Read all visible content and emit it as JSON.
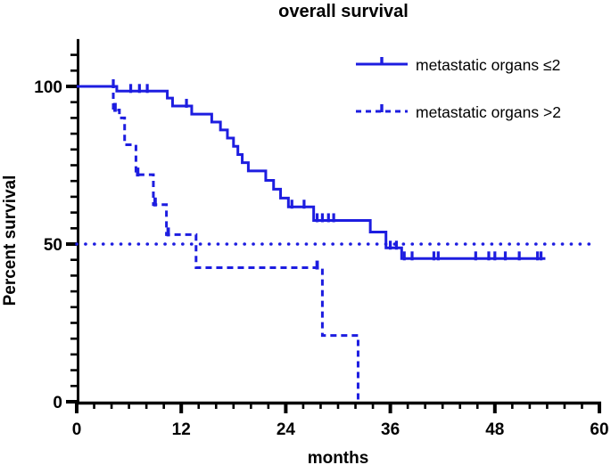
{
  "title": "overall survival",
  "colors": {
    "curve_blue": "#1d1de0",
    "axis_black": "#000000",
    "text_black": "#000000",
    "background": "#ffffff"
  },
  "legend": {
    "items": [
      {
        "label": "metastatic organs ≤2",
        "style": "solid"
      },
      {
        "label": "metastatic organs >2",
        "style": "dashed"
      }
    ]
  },
  "chart_data": {
    "type": "line",
    "subtype": "kaplan-meier-step",
    "title": "overall survival",
    "xlabel": "months",
    "ylabel": "Percent survival",
    "xlim": [
      0,
      60
    ],
    "ylim": [
      0,
      100
    ],
    "x_major_ticks": [
      0,
      12,
      24,
      36,
      48,
      60
    ],
    "x_minor_step": 2,
    "y_major_ticks": [
      0,
      50,
      100
    ],
    "y_minor_step": 5,
    "y_axis_top_extent": 115,
    "grid": false,
    "legend_position": "top-right-inside",
    "reference_line": {
      "y": 50,
      "style": "dotted",
      "x_start": 0,
      "x_end": 59.5
    },
    "series": [
      {
        "name": "metastatic organs ≤2",
        "style": "solid",
        "steps": [
          [
            0,
            100
          ],
          [
            4.6,
            98.5
          ],
          [
            10.4,
            96.3
          ],
          [
            11.0,
            93.8
          ],
          [
            13.2,
            91.2
          ],
          [
            15.5,
            88.7
          ],
          [
            16.5,
            86.2
          ],
          [
            17.3,
            83.6
          ],
          [
            18.0,
            81.0
          ],
          [
            18.5,
            78.4
          ],
          [
            19.0,
            75.8
          ],
          [
            19.7,
            73.2
          ],
          [
            21.7,
            70.2
          ],
          [
            22.6,
            67.4
          ],
          [
            23.4,
            64.6
          ],
          [
            24.3,
            61.8
          ],
          [
            27.2,
            57.5
          ],
          [
            33.7,
            53.8
          ],
          [
            35.5,
            48.8
          ],
          [
            37.3,
            45.4
          ]
        ],
        "end_x": 53.8,
        "censor_marks": [
          [
            4.2,
            100
          ],
          [
            6.2,
            98.5
          ],
          [
            7.2,
            98.5
          ],
          [
            8.1,
            98.5
          ],
          [
            12.6,
            93.8
          ],
          [
            24.7,
            61.8
          ],
          [
            26.1,
            61.8
          ],
          [
            27.6,
            57.5
          ],
          [
            28.2,
            57.5
          ],
          [
            28.9,
            57.5
          ],
          [
            29.5,
            57.5
          ],
          [
            36.0,
            48.8
          ],
          [
            36.7,
            48.8
          ],
          [
            37.6,
            45.4
          ],
          [
            38.5,
            45.4
          ],
          [
            41.0,
            45.4
          ],
          [
            41.5,
            45.4
          ],
          [
            45.8,
            45.4
          ],
          [
            47.3,
            45.4
          ],
          [
            48.0,
            45.4
          ],
          [
            49.2,
            45.4
          ],
          [
            50.8,
            45.4
          ],
          [
            52.9,
            45.4
          ],
          [
            53.3,
            45.4
          ]
        ]
      },
      {
        "name": "metastatic organs >2",
        "style": "dashed",
        "steps": [
          [
            0,
            100
          ],
          [
            4.2,
            92.5
          ],
          [
            4.9,
            90.0
          ],
          [
            5.5,
            81.5
          ],
          [
            6.8,
            72.0
          ],
          [
            8.8,
            62.5
          ],
          [
            10.3,
            53.0
          ],
          [
            13.7,
            42.5
          ],
          [
            28.2,
            21.0
          ],
          [
            32.3,
            0
          ]
        ],
        "end_x": 32.3,
        "censor_marks": [
          [
            4.4,
            92.5
          ],
          [
            7.0,
            72.0
          ],
          [
            9.0,
            62.5
          ],
          [
            10.5,
            53.0
          ],
          [
            27.6,
            42.5
          ]
        ]
      }
    ]
  }
}
